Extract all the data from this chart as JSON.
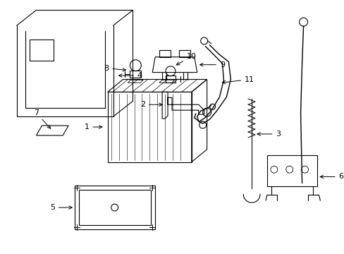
{
  "background_color": "#ffffff",
  "line_color": "#000000",
  "lw": 0.8,
  "fig_w": 4.89,
  "fig_h": 3.6,
  "dpi": 100
}
